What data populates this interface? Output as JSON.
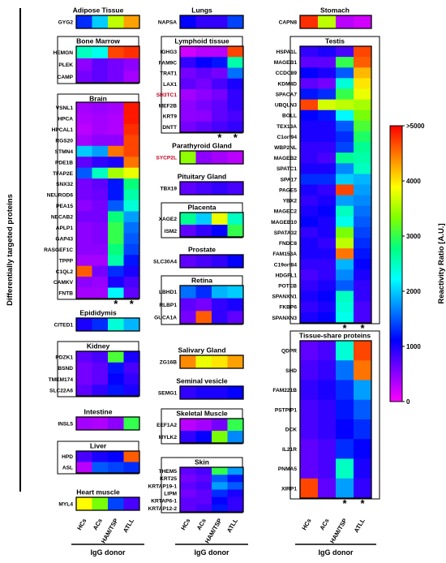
{
  "chart_data": {
    "type": "heatmap",
    "y_axis_title": "Differentially targeted proteins",
    "x_categories": [
      "HCs",
      "ACs",
      "HAM/TSP",
      "ATLL"
    ],
    "x_axis_title": "IgG donor",
    "colorbar": {
      "label": "Reactivity Ratio [A.U.]",
      "min": 0,
      "max": 5000,
      "ticks": [
        "0",
        "1000",
        "2000",
        "3000",
        "4000",
        ">5000"
      ],
      "colors": [
        "#ff00ff",
        "#8000ff",
        "#0000ff",
        "#0080ff",
        "#00ffff",
        "#00ff80",
        "#80ff00",
        "#ffff00",
        "#ff8000",
        "#ff0000"
      ]
    },
    "panels": [
      {
        "tissue": "Adipose Tissue",
        "genes": [
          "GYG2"
        ],
        "values": [
          [
            1300,
            2000,
            3600,
            4300
          ]
        ],
        "stars": []
      },
      {
        "tissue": "Bone Marrow",
        "genes": [
          "HEMGN",
          "PLEK",
          "CAMP"
        ],
        "values": [
          [
            2500,
            2300,
            4700,
            4800
          ],
          [
            500,
            700,
            600,
            500
          ],
          [
            600,
            700,
            600,
            400
          ]
        ],
        "stars": []
      },
      {
        "tissue": "Brain",
        "genes": [
          "VSNL1",
          "HPCA",
          "HPCAL1",
          "RGS20",
          "STMN4",
          "PDE1B",
          "TFAP2E",
          "SNX32",
          "NEUROD6",
          "PEA15",
          "NECAB2",
          "APLP1",
          "GAP43",
          "RASGEF1C",
          "TPPP",
          "C1QL2",
          "CAMKV",
          "FNTB"
        ],
        "values": [
          [
            400,
            450,
            400,
            4900
          ],
          [
            350,
            400,
            350,
            4900
          ],
          [
            300,
            400,
            350,
            4800
          ],
          [
            400,
            500,
            500,
            4700
          ],
          [
            2000,
            1800,
            4500,
            4700
          ],
          [
            700,
            900,
            1000,
            4500
          ],
          [
            1500,
            2500,
            3500,
            3800
          ],
          [
            600,
            700,
            1200,
            2800
          ],
          [
            600,
            650,
            1200,
            2600
          ],
          [
            500,
            600,
            1500,
            2400
          ],
          [
            600,
            600,
            2800,
            1800
          ],
          [
            500,
            550,
            3000,
            1600
          ],
          [
            500,
            550,
            3000,
            1500
          ],
          [
            500,
            500,
            2800,
            1400
          ],
          [
            400,
            400,
            2600,
            1200
          ],
          [
            4600,
            600,
            1300,
            1000
          ],
          [
            500,
            450,
            1000,
            800
          ],
          [
            400,
            400,
            2200,
            700
          ]
        ],
        "stars": [
          "HAM/TSP",
          "ATLL"
        ]
      },
      {
        "tissue": "Epididymis",
        "genes": [
          "CITED1"
        ],
        "values": [
          [
            1000,
            1300,
            2400,
            1900
          ]
        ],
        "stars": []
      },
      {
        "tissue": "Kidney",
        "genes": [
          "PDZK1",
          "BSND",
          "TMEM174",
          "SLC22A6"
        ],
        "values": [
          [
            700,
            800,
            3100,
            1000
          ],
          [
            600,
            700,
            1200,
            800
          ],
          [
            600,
            700,
            1100,
            900
          ],
          [
            700,
            900,
            1200,
            1000
          ]
        ],
        "stars": []
      },
      {
        "tissue": "Intestine",
        "genes": [
          "INSL5"
        ],
        "values": [
          [
            400,
            350,
            500,
            3000
          ]
        ],
        "stars": []
      },
      {
        "tissue": "Liver",
        "genes": [
          "HPD",
          "ASL"
        ],
        "values": [
          [
            800,
            1000,
            1100,
            4600
          ],
          [
            300,
            1500,
            1400,
            1300
          ]
        ],
        "stars": []
      },
      {
        "tissue": "Heart muscle",
        "genes": [
          "MYL4"
        ],
        "values": [
          [
            3900,
            3300,
            1400,
            800
          ]
        ],
        "stars": []
      },
      {
        "tissue": "Lungs",
        "genes": [
          "NAPSA"
        ],
        "values": [
          [
            1100,
            900,
            900,
            1400
          ]
        ],
        "stars": []
      },
      {
        "tissue": "Lymphoid tissue",
        "genes": [
          "IGHG3",
          "FAM9C",
          "TRAT1",
          "LAX1",
          "SH3TC1",
          "MEF2B",
          "KRT9",
          "DNTT"
        ],
        "values": [
          [
            200,
            300,
            300,
            4700
          ],
          [
            900,
            1100,
            1200,
            2600
          ],
          [
            600,
            700,
            600,
            1600
          ],
          [
            700,
            600,
            800,
            1000
          ],
          [
            400,
            500,
            600,
            900
          ],
          [
            500,
            600,
            700,
            900
          ],
          [
            500,
            500,
            700,
            800
          ],
          [
            600,
            700,
            800,
            900
          ]
        ],
        "stars": [
          "HAM/TSP",
          "ATLL"
        ]
      },
      {
        "tissue": "Parathyroid Gland",
        "genes": [
          "SYCP2L"
        ],
        "values": [
          [
            3400,
            500,
            400,
            300
          ]
        ],
        "stars": []
      },
      {
        "tissue": "Pituitary Gland",
        "genes": [
          "TBX19"
        ],
        "values": [
          [
            700,
            800,
            900,
            800
          ]
        ],
        "stars": []
      },
      {
        "tissue": "Placenta",
        "genes": [
          "XAGE2",
          "ISM2"
        ],
        "values": [
          [
            2700,
            2000,
            3800,
            2500
          ],
          [
            700,
            900,
            1100,
            3000
          ]
        ],
        "stars": []
      },
      {
        "tissue": "Prostate",
        "genes": [
          "SLC30A4"
        ],
        "values": [
          [
            700,
            800,
            900,
            1100
          ]
        ],
        "stars": []
      },
      {
        "tissue": "Retina",
        "genes": [
          "LBHD1",
          "RLBP1",
          "GUCA1A"
        ],
        "values": [
          [
            1600,
            1300,
            1900,
            2000
          ],
          [
            700,
            600,
            900,
            1000
          ],
          [
            600,
            4600,
            900,
            700
          ]
        ],
        "stars": []
      },
      {
        "tissue": "Salivary Gland",
        "genes": [
          "ZG16B"
        ],
        "values": [
          [
            4400,
            3800,
            4000,
            4300
          ]
        ],
        "stars": []
      },
      {
        "tissue": "Seminal vesicle",
        "genes": [
          "SEMG1"
        ],
        "values": [
          [
            900,
            1000,
            1000,
            1100
          ]
        ],
        "stars": []
      },
      {
        "tissue": "Skeletal Muscle",
        "genes": [
          "EEF1A2",
          "MYLK2"
        ],
        "values": [
          [
            300,
            400,
            600,
            3000
          ],
          [
            900,
            1100,
            3300,
            1700
          ]
        ],
        "stars": []
      },
      {
        "tissue": "Skin",
        "genes": [
          "THEM5",
          "KRT25",
          "KRTAP19-1",
          "LIPM",
          "KRTAP6-1",
          "KRTAP12-2"
        ],
        "values": [
          [
            700,
            800,
            3000,
            1800
          ],
          [
            600,
            700,
            1500,
            1200
          ],
          [
            700,
            800,
            1800,
            1500
          ],
          [
            600,
            700,
            1300,
            1000
          ],
          [
            700,
            700,
            1100,
            900
          ],
          [
            700,
            800,
            1200,
            900
          ]
        ],
        "stars": []
      },
      {
        "tissue": "Stomach",
        "genes": [
          "CAPN8"
        ],
        "values": [
          [
            4800,
            3600,
            300,
            200
          ]
        ],
        "stars": []
      },
      {
        "tissue": "Testis",
        "genes": [
          "HSPA1L",
          "MAGEB1",
          "CCDC89",
          "KDM4D",
          "SPACA7",
          "UBQLN3",
          "BOLL",
          "TEX13A",
          "C1orf94",
          "WBP2NL",
          "MAGEB2",
          "SPATC1",
          "SPA17",
          "PAGE5",
          "YBX2",
          "MAGEC2",
          "MAGEB10",
          "SPATA32",
          "FNDC8",
          "FAM153A",
          "C19orf84",
          "HDGFL1",
          "POTEB",
          "SPANXN1",
          "FKBP6",
          "SPANXN3"
        ],
        "values": [
          [
            900,
            1000,
            800,
            4700
          ],
          [
            700,
            700,
            3000,
            4600
          ],
          [
            1100,
            1000,
            1500,
            4200
          ],
          [
            700,
            600,
            2400,
            4000
          ],
          [
            1200,
            1300,
            3000,
            3800
          ],
          [
            4700,
            3700,
            3600,
            3500
          ],
          [
            1100,
            1200,
            2200,
            3300
          ],
          [
            1000,
            1000,
            1500,
            3100
          ],
          [
            1000,
            1000,
            1300,
            2900
          ],
          [
            900,
            900,
            1400,
            2700
          ],
          [
            900,
            800,
            2700,
            2600
          ],
          [
            1000,
            1000,
            1700,
            2500
          ],
          [
            1300,
            1300,
            2000,
            1900
          ],
          [
            1000,
            900,
            4700,
            1800
          ],
          [
            900,
            1000,
            1800,
            1700
          ],
          [
            1000,
            1100,
            2500,
            1600
          ],
          [
            1100,
            1000,
            2300,
            1500
          ],
          [
            900,
            1000,
            3300,
            1400
          ],
          [
            1000,
            900,
            3600,
            1300
          ],
          [
            1000,
            1000,
            4500,
            1200
          ],
          [
            900,
            900,
            1900,
            1100
          ],
          [
            800,
            900,
            1700,
            1000
          ],
          [
            900,
            1000,
            1500,
            900
          ],
          [
            1000,
            1100,
            2500,
            900
          ],
          [
            900,
            1000,
            2400,
            800
          ],
          [
            1000,
            1100,
            2300,
            800
          ]
        ],
        "stars": [
          "HAM/TSP",
          "ATLL"
        ]
      },
      {
        "tissue": "Tissue-share proteins",
        "genes": [
          "QDPR",
          "SHD",
          "FAM221B",
          "PSTPIP1",
          "DCK",
          "IL21R",
          "PNMA5",
          "XIRP1"
        ],
        "values": [
          [
            700,
            800,
            2400,
            4700
          ],
          [
            800,
            900,
            1600,
            4500
          ],
          [
            900,
            1000,
            1300,
            1800
          ],
          [
            800,
            900,
            1200,
            1500
          ],
          [
            800,
            900,
            1100,
            1300
          ],
          [
            700,
            800,
            1300,
            1100
          ],
          [
            700,
            800,
            2500,
            1000
          ],
          [
            4700,
            700,
            1800,
            900
          ]
        ],
        "stars": [
          "HAM/TSP",
          "ATLL"
        ]
      }
    ]
  }
}
